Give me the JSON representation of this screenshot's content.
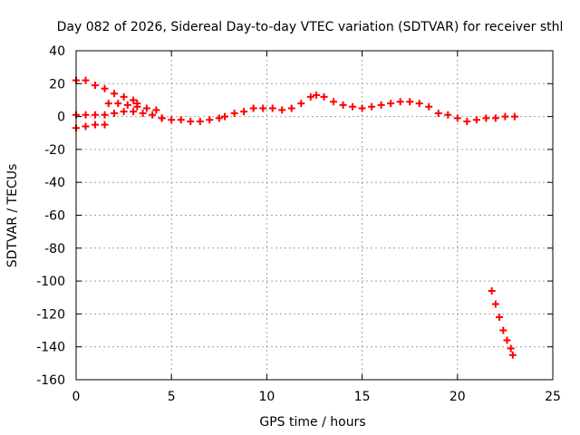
{
  "chart_data": {
    "type": "scatter",
    "title": "Day 082 of 2026, Sidereal Day-to-day VTEC variation (SDTVAR) for receiver sthl",
    "xlabel": "GPS time / hours",
    "ylabel": "SDTVAR / TECUs",
    "xlim": [
      0,
      25
    ],
    "ylim": [
      -160,
      40
    ],
    "xticks": [
      0,
      5,
      10,
      15,
      20,
      25
    ],
    "yticks": [
      -160,
      -140,
      -120,
      -100,
      -80,
      -60,
      -40,
      -20,
      0,
      20,
      40
    ],
    "grid": true,
    "marker": "+",
    "color": "#ff0000",
    "series": [
      {
        "x": [
          0.0,
          0.5,
          1.0,
          1.5,
          2.0,
          2.5,
          3.0,
          3.2
        ],
        "y": [
          22,
          22,
          19,
          17,
          14,
          12,
          10,
          8
        ]
      },
      {
        "x": [
          0.0,
          0.5,
          1.0,
          1.5,
          2.0,
          2.5,
          3.0,
          3.5,
          4.0,
          4.5
        ],
        "y": [
          1,
          1,
          1,
          1,
          2,
          3,
          3,
          2,
          1,
          -1
        ]
      },
      {
        "x": [
          0.0,
          0.5,
          1.0,
          1.5
        ],
        "y": [
          -7,
          -6,
          -5,
          -5
        ]
      },
      {
        "x": [
          1.7,
          2.2,
          2.7,
          3.2,
          3.7,
          4.2
        ],
        "y": [
          8,
          8,
          7,
          6,
          5,
          4
        ]
      },
      {
        "x": [
          4.5,
          5.0,
          5.5,
          6.0,
          6.5,
          7.0,
          7.5,
          7.8
        ],
        "y": [
          -1,
          -2,
          -2,
          -3,
          -3,
          -2,
          -1,
          0
        ]
      },
      {
        "x": [
          8.3,
          8.8,
          9.3,
          9.8,
          10.3,
          10.8,
          11.3,
          11.8,
          12.3,
          12.6,
          13.0,
          13.5,
          14.0,
          14.5,
          15.0,
          15.5,
          16.0,
          16.5,
          17.0,
          17.5,
          18.0,
          18.5
        ],
        "y": [
          2,
          3,
          5,
          5,
          5,
          4,
          5,
          8,
          12,
          13,
          12,
          9,
          7,
          6,
          5,
          6,
          7,
          8,
          9,
          9,
          8,
          6
        ]
      },
      {
        "x": [
          19.0,
          19.5,
          20.0,
          20.5,
          21.0,
          21.5,
          22.0,
          22.5,
          23.0
        ],
        "y": [
          2,
          1,
          -1,
          -3,
          -2,
          -1,
          -1,
          0,
          0
        ]
      },
      {
        "x": [
          21.8,
          22.0,
          22.2,
          22.4,
          22.6,
          22.8,
          22.9
        ],
        "y": [
          -106,
          -114,
          -122,
          -130,
          -136,
          -141,
          -145
        ]
      }
    ]
  }
}
